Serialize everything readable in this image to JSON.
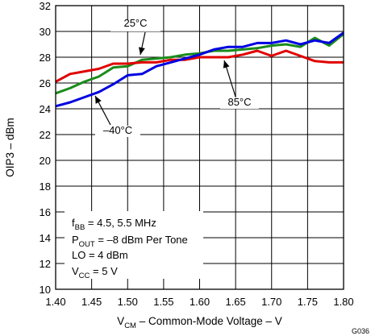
{
  "chart_data": {
    "type": "line",
    "xlabel": {
      "base": "V",
      "sub": "CM",
      "rest": " – Common-Mode Voltage – V"
    },
    "ylabel": "OIP3 – dBm",
    "xlim": [
      1.4,
      1.8
    ],
    "ylim": [
      10,
      32
    ],
    "x_ticks": [
      "1.40",
      "1.45",
      "1.50",
      "1.55",
      "1.60",
      "1.65",
      "1.70",
      "1.75",
      "1.80"
    ],
    "y_ticks": [
      "10",
      "12",
      "14",
      "16",
      "18",
      "20",
      "22",
      "24",
      "26",
      "28",
      "30",
      "32"
    ],
    "grid": true,
    "series": [
      {
        "name": "25°C",
        "color": "#1a8c1a",
        "x": [
          1.4,
          1.42,
          1.44,
          1.46,
          1.48,
          1.5,
          1.52,
          1.54,
          1.56,
          1.58,
          1.6,
          1.62,
          1.64,
          1.66,
          1.68,
          1.7,
          1.72,
          1.74,
          1.76,
          1.78,
          1.8
        ],
        "y": [
          25.2,
          25.6,
          26.1,
          26.5,
          27.2,
          27.3,
          27.8,
          27.9,
          28.0,
          28.2,
          28.3,
          28.5,
          28.5,
          28.6,
          28.7,
          28.9,
          29.0,
          28.8,
          29.5,
          28.9,
          29.8
        ]
      },
      {
        "name": "85°C",
        "color": "#e00000",
        "x": [
          1.4,
          1.42,
          1.44,
          1.46,
          1.48,
          1.5,
          1.52,
          1.54,
          1.56,
          1.58,
          1.6,
          1.62,
          1.64,
          1.66,
          1.68,
          1.7,
          1.72,
          1.74,
          1.76,
          1.78,
          1.8
        ],
        "y": [
          26.1,
          26.7,
          26.9,
          27.1,
          27.5,
          27.5,
          27.6,
          27.6,
          27.8,
          27.8,
          28.0,
          28.0,
          28.0,
          28.2,
          28.5,
          28.1,
          28.5,
          28.1,
          27.7,
          27.6,
          27.6
        ]
      },
      {
        "name": "–40°C",
        "color": "#0000e0",
        "x": [
          1.4,
          1.42,
          1.44,
          1.46,
          1.48,
          1.5,
          1.52,
          1.54,
          1.56,
          1.58,
          1.6,
          1.62,
          1.64,
          1.66,
          1.68,
          1.7,
          1.72,
          1.74,
          1.76,
          1.78,
          1.8
        ],
        "y": [
          24.2,
          24.5,
          24.9,
          25.3,
          25.9,
          26.6,
          26.7,
          27.3,
          27.6,
          27.9,
          28.2,
          28.6,
          28.8,
          28.8,
          29.1,
          29.1,
          29.3,
          29.0,
          29.3,
          29.1,
          29.9
        ]
      }
    ],
    "annotations": [
      {
        "text": "25°C"
      },
      {
        "text": "85°C"
      },
      {
        "text": "–40°C"
      }
    ],
    "conditions": [
      {
        "main": "f",
        "sub": "BB",
        "rest": " = 4.5, 5.5 MHz"
      },
      {
        "main": "P",
        "sub": "OUT",
        "rest": " = –8 dBm Per Tone"
      },
      {
        "main": "LO = 4 dBm",
        "sub": "",
        "rest": ""
      },
      {
        "main": "V",
        "sub": "CC",
        "rest": " =  5 V"
      }
    ],
    "figure_id": "G036"
  }
}
